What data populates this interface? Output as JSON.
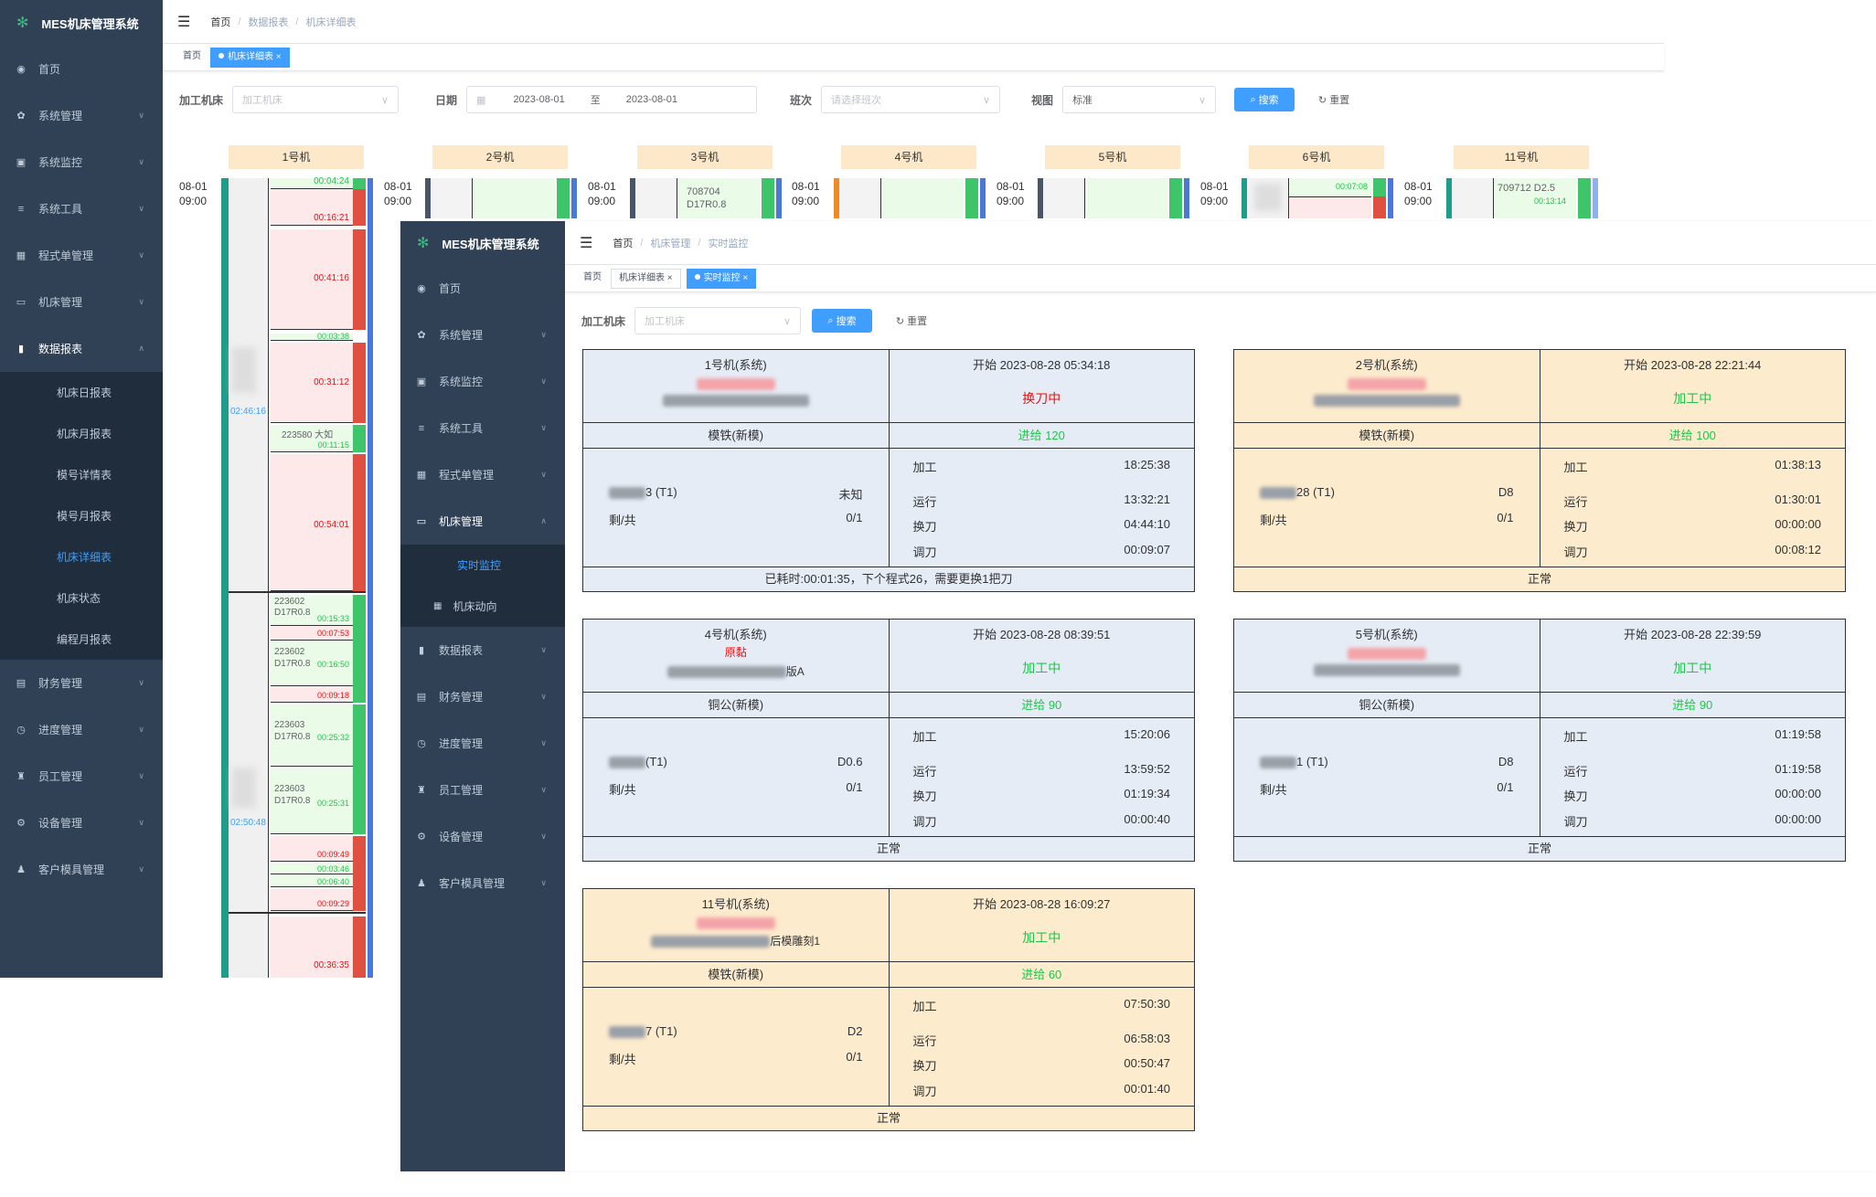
{
  "app": {
    "title": "MES机床管理系统"
  },
  "sidebar": {
    "items": [
      {
        "label": "首页",
        "icon": "dashboard-icon"
      },
      {
        "label": "系统管理",
        "icon": "gear-icon"
      },
      {
        "label": "系统监控",
        "icon": "monitor-icon"
      },
      {
        "label": "系统工具",
        "icon": "tool-icon"
      },
      {
        "label": "程式单管理",
        "icon": "table-icon"
      },
      {
        "label": "机床管理",
        "icon": "machine-icon"
      },
      {
        "label": "数据报表",
        "icon": "chart-icon"
      },
      {
        "label": "财务管理",
        "icon": "money-icon"
      },
      {
        "label": "进度管理",
        "icon": "clock-icon"
      },
      {
        "label": "员工管理",
        "icon": "staff-icon"
      },
      {
        "label": "设备管理",
        "icon": "device-icon"
      },
      {
        "label": "客户模具管理",
        "icon": "user-icon"
      }
    ],
    "report_sub": [
      "机床日报表",
      "机床月报表",
      "模号详情表",
      "模号月报表",
      "机床详细表",
      "机床状态",
      "编程月报表"
    ],
    "machine_sub": [
      "实时监控",
      "机床动向"
    ]
  },
  "back": {
    "breadcrumb": [
      "首页",
      "数据报表",
      "机床详细表"
    ],
    "tags": [
      "首页",
      "机床详细表"
    ],
    "filters": {
      "machine_label": "加工机床",
      "machine_placeholder": "加工机床",
      "date_label": "日期",
      "date_from": "2023-08-01",
      "date_sep": "至",
      "date_to": "2023-08-01",
      "shift_label": "班次",
      "shift_placeholder": "请选择班次",
      "view_label": "视图",
      "view_value": "标准",
      "search": "搜索",
      "reset": "重置"
    },
    "machines": [
      "1号机",
      "2号机",
      "3号机",
      "4号机",
      "5号机",
      "6号机",
      "11号机"
    ],
    "axis_date": "08-01",
    "axis_time": "09:00",
    "col1": {
      "t1": "00:04:24",
      "t2": "00:16:21",
      "t3": "00:41:16",
      "t4": "00:03:38",
      "t5": "00:31:12",
      "p1": "223580 大如",
      "t6": "00:11:15",
      "t7": "00:54:01",
      "c1": "223602",
      "c1b": "D17R0.8",
      "t8": "00:15:33",
      "t9": "00:07:53",
      "c2": "223602",
      "c2b": "D17R0.8",
      "t10": "00:16:50",
      "t11": "00:09:18",
      "c3": "223603",
      "c3b": "D17R0.8",
      "t12": "00:25:32",
      "c4": "223603",
      "c4b": "D17R0.8",
      "t13": "00:25:31",
      "t14": "00:09:49",
      "t15": "00:03:46",
      "t16": "00:06:40",
      "t17": "00:09:29",
      "t18": "00:36:35",
      "side1": "02:46:16",
      "side2": "02:50:48"
    },
    "col3": {
      "a": "708704",
      "b": "D17R0.8"
    },
    "col6": {
      "t": "00:07:08"
    },
    "col7": {
      "a": "709712 D2.5",
      "t": "00:13:14"
    }
  },
  "front": {
    "breadcrumb": [
      "首页",
      "机床管理",
      "实时监控"
    ],
    "tags": [
      "首页",
      "机床详细表",
      "实时监控"
    ],
    "filters": {
      "machine_label": "加工机床",
      "machine_placeholder": "加工机床",
      "search": "搜索",
      "reset": "重置"
    },
    "labels": {
      "process": "加工",
      "run": "运行",
      "change": "换刀",
      "adjust": "调刀",
      "remain": "剩/共"
    },
    "cards": [
      {
        "name": "1号机(系统)",
        "start": "开始 2023-08-28 05:34:18",
        "status": "换刀中",
        "mold": "模铁(新模)",
        "progress": "进给 120",
        "tool": "3 (T1)",
        "tool_val": "未知",
        "ratio": "0/1",
        "process": "18:25:38",
        "run": "13:32:21",
        "change": "04:44:10",
        "adjust": "00:09:07",
        "footer": "已耗时:00:01:35，下个程式26，需要更换1把刀",
        "bg": "#e6ecf6"
      },
      {
        "name": "2号机(系统)",
        "start": "开始 2023-08-28 22:21:44",
        "status": "加工中",
        "mold": "模铁(新模)",
        "progress": "进给 100",
        "tool": "28 (T1)",
        "tool_val": "D8",
        "ratio": "0/1",
        "process": "01:38:13",
        "run": "01:30:01",
        "change": "00:00:00",
        "adjust": "00:08:12",
        "footer": "正常",
        "bg": "#fdebcd"
      },
      {
        "name": "4号机(系统)",
        "start": "开始 2023-08-28 08:39:51",
        "status": "加工中",
        "note": "原黏",
        "sub": "版A",
        "mold": "铜公(新模)",
        "progress": "进给 90",
        "tool": "(T1)",
        "tool_val": "D0.6",
        "ratio": "0/1",
        "process": "15:20:06",
        "run": "13:59:52",
        "change": "01:19:34",
        "adjust": "00:00:40",
        "footer": "正常",
        "bg": "#e6ecf6"
      },
      {
        "name": "5号机(系统)",
        "start": "开始 2023-08-28 22:39:59",
        "status": "加工中",
        "mold": "铜公(新模)",
        "progress": "进给 90",
        "tool": "1 (T1)",
        "tool_val": "D8",
        "ratio": "0/1",
        "process": "01:19:58",
        "run": "01:19:58",
        "change": "00:00:00",
        "adjust": "00:00:00",
        "footer": "正常",
        "bg": "#e6ecf6"
      },
      {
        "name": "11号机(系统)",
        "start": "开始 2023-08-28 16:09:27",
        "status": "加工中",
        "sub": "后模雕刻1",
        "mold": "模铁(新模)",
        "progress": "进给 60",
        "tool": "7 (T1)",
        "tool_val": "D2",
        "ratio": "0/1",
        "process": "07:50:30",
        "run": "06:58:03",
        "change": "00:50:47",
        "adjust": "00:01:40",
        "footer": "正常",
        "bg": "#fdebcd"
      }
    ]
  }
}
